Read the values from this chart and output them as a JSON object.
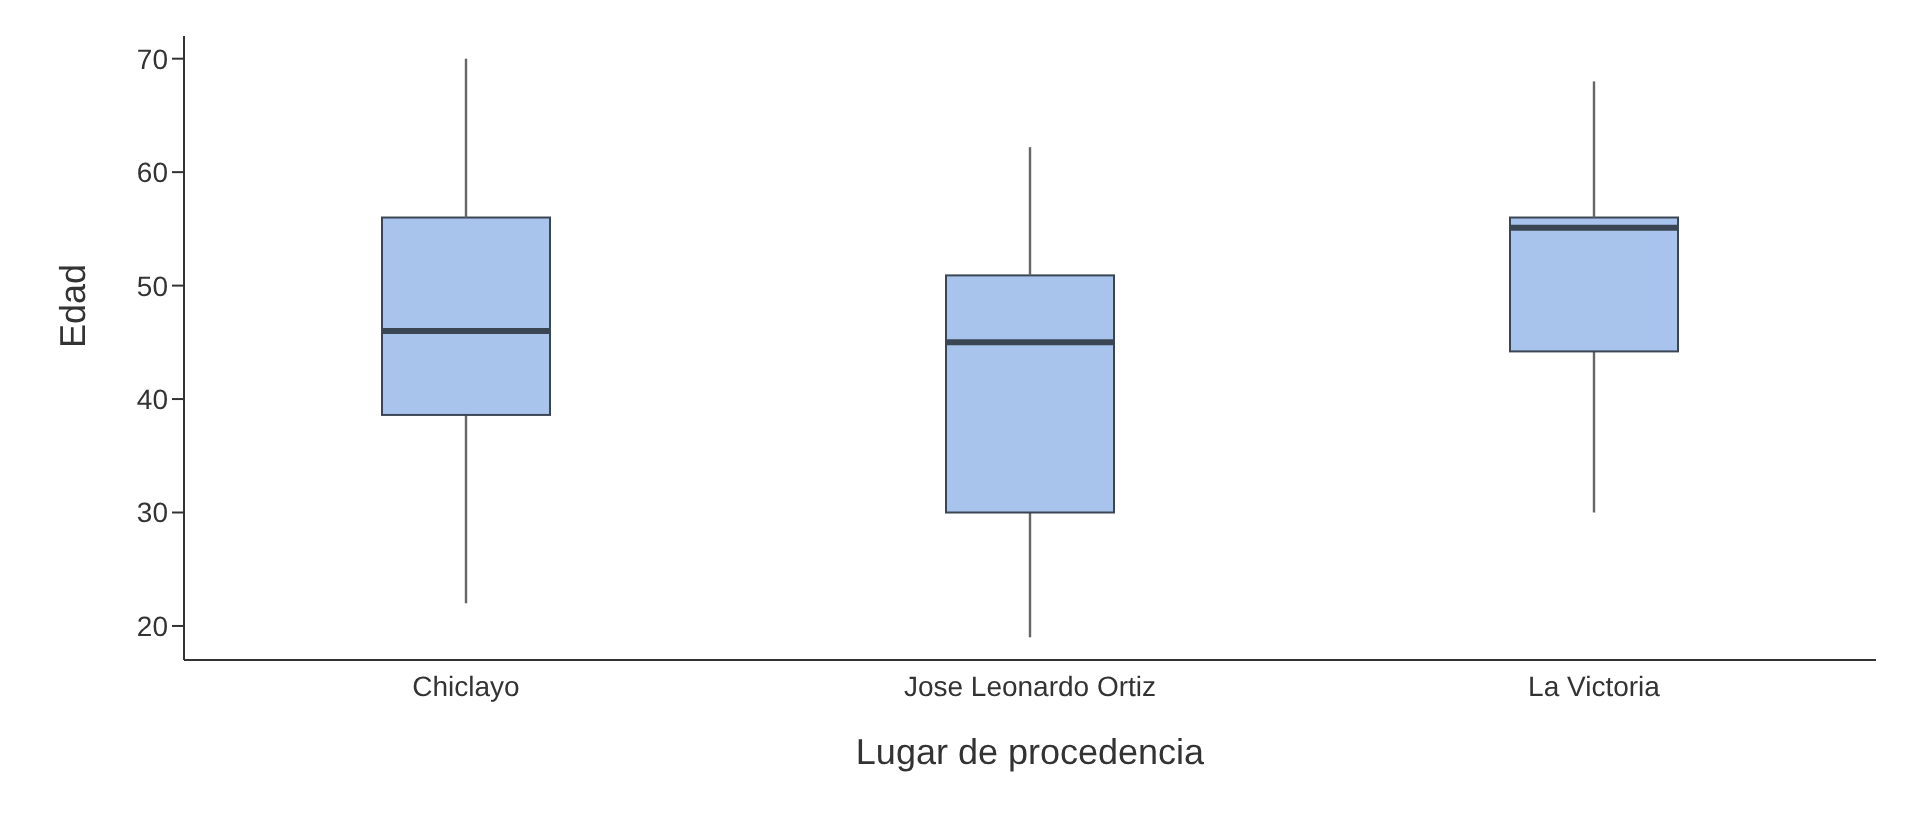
{
  "chart_data": {
    "type": "box",
    "xlabel": "Lugar de procedencia",
    "ylabel": "Edad",
    "categories": [
      "Chiclayo",
      "Jose Leonardo Ortiz",
      "La Victoria"
    ],
    "boxes": [
      {
        "low": 22,
        "q1": 38.6,
        "median": 46,
        "q3": 56,
        "high": 70
      },
      {
        "low": 19,
        "q1": 30,
        "median": 45,
        "q3": 50.9,
        "high": 62.2
      },
      {
        "low": 30,
        "q1": 44.2,
        "median": 55.1,
        "q3": 56,
        "high": 68
      }
    ],
    "color": "#a9c4ec",
    "ylim": [
      17,
      72
    ],
    "yticks": [
      20,
      30,
      40,
      50,
      60,
      70
    ]
  }
}
